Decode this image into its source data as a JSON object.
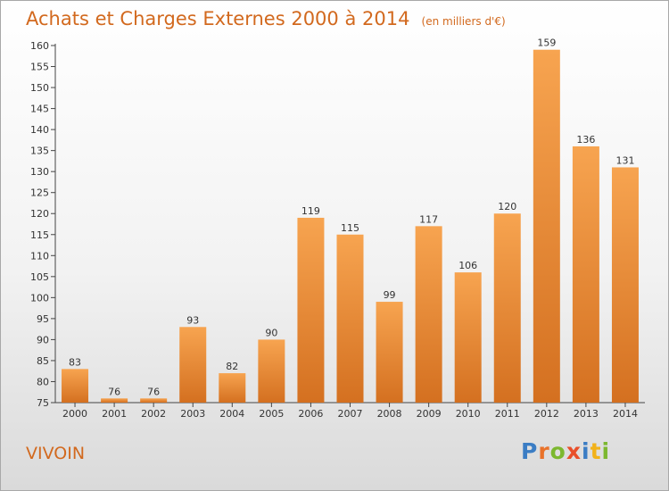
{
  "title": "Achats et Charges Externes 2000 à 2014",
  "unit_note": "(en milliers d'€)",
  "commune": "VIVOIN",
  "logo": {
    "letters": [
      {
        "ch": "P",
        "color": "#3b7dc4"
      },
      {
        "ch": "r",
        "color": "#e9722a"
      },
      {
        "ch": "o",
        "color": "#7cb82f"
      },
      {
        "ch": "x",
        "color": "#e94f2a"
      },
      {
        "ch": "i",
        "color": "#3b7dc4"
      },
      {
        "ch": "t",
        "color": "#f2b21a"
      },
      {
        "ch": "i",
        "color": "#7cb82f"
      }
    ]
  },
  "colors": {
    "bar_light": "#f7a450",
    "bar_dark": "#d47020",
    "title": "#d2691e"
  },
  "chart_data": {
    "type": "bar",
    "categories": [
      "2000",
      "2001",
      "2002",
      "2003",
      "2004",
      "2005",
      "2006",
      "2007",
      "2008",
      "2009",
      "2010",
      "2011",
      "2012",
      "2013",
      "2014"
    ],
    "values": [
      83,
      76,
      76,
      93,
      82,
      90,
      119,
      115,
      99,
      117,
      106,
      120,
      159,
      136,
      131
    ],
    "title": "Achats et Charges Externes 2000 à 2014",
    "xlabel": "",
    "ylabel": "",
    "ylim": [
      75,
      160
    ],
    "yticks": [
      75,
      80,
      85,
      90,
      95,
      100,
      105,
      110,
      115,
      120,
      125,
      130,
      135,
      140,
      145,
      150,
      155,
      160
    ],
    "grid": false,
    "legend": "none"
  }
}
